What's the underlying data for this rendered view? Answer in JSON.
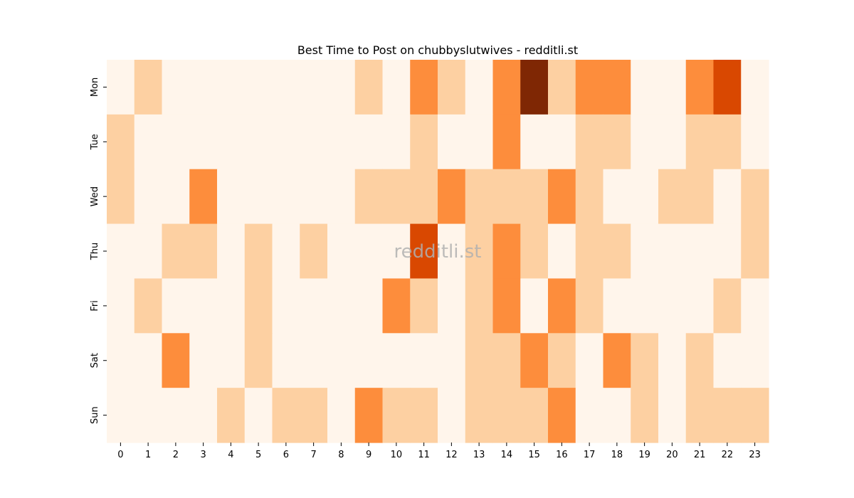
{
  "chart_data": {
    "type": "heatmap",
    "title": "Best Time to Post on chubbyslutwives - redditli.st",
    "watermark": "redditli.st",
    "x_categories": [
      "0",
      "1",
      "2",
      "3",
      "4",
      "5",
      "6",
      "7",
      "8",
      "9",
      "10",
      "11",
      "12",
      "13",
      "14",
      "15",
      "16",
      "17",
      "18",
      "19",
      "20",
      "21",
      "22",
      "23"
    ],
    "y_categories": [
      "Mon",
      "Tue",
      "Wed",
      "Thu",
      "Fri",
      "Sat",
      "Sun"
    ],
    "xlabel": "",
    "ylabel": "",
    "colormap": "Oranges",
    "value_range": [
      0,
      4
    ],
    "colors": [
      "#fff5eb",
      "#fdd0a2",
      "#fd8d3c",
      "#d94801",
      "#7f2704"
    ],
    "colorbar": false,
    "values": [
      [
        0,
        1,
        0,
        0,
        0,
        0,
        0,
        0,
        0,
        1,
        0,
        2,
        1,
        0,
        2,
        4,
        1,
        2,
        2,
        0,
        0,
        2,
        3,
        0
      ],
      [
        1,
        0,
        0,
        0,
        0,
        0,
        0,
        0,
        0,
        0,
        0,
        1,
        0,
        0,
        2,
        0,
        0,
        1,
        1,
        0,
        0,
        1,
        1,
        0
      ],
      [
        1,
        0,
        0,
        2,
        0,
        0,
        0,
        0,
        0,
        1,
        1,
        1,
        2,
        1,
        1,
        1,
        2,
        1,
        0,
        0,
        1,
        1,
        0,
        1
      ],
      [
        0,
        0,
        1,
        1,
        0,
        1,
        0,
        1,
        0,
        0,
        0,
        3,
        0,
        1,
        2,
        1,
        0,
        1,
        1,
        0,
        0,
        0,
        0,
        1
      ],
      [
        0,
        1,
        0,
        0,
        0,
        1,
        0,
        0,
        0,
        0,
        2,
        1,
        0,
        1,
        2,
        0,
        2,
        1,
        0,
        0,
        0,
        0,
        1,
        0
      ],
      [
        0,
        0,
        2,
        0,
        0,
        1,
        0,
        0,
        0,
        0,
        0,
        0,
        0,
        1,
        1,
        2,
        1,
        0,
        2,
        1,
        0,
        1,
        0,
        0
      ],
      [
        0,
        0,
        0,
        0,
        1,
        0,
        1,
        1,
        0,
        2,
        1,
        1,
        0,
        1,
        1,
        1,
        2,
        0,
        0,
        1,
        0,
        1,
        1,
        1
      ]
    ]
  }
}
